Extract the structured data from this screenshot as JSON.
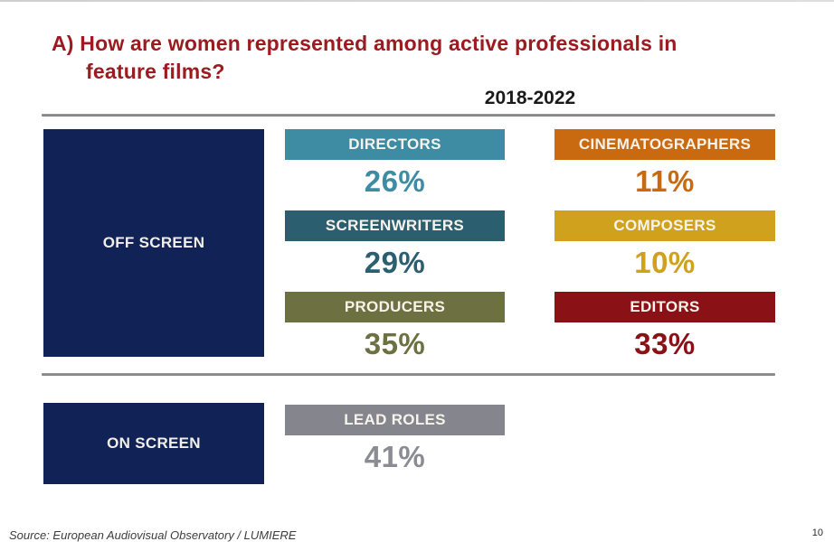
{
  "page": {
    "title_line1": "A) How are women represented among active professionals in",
    "title_line2": "feature films?",
    "title_color": "#9c1b20",
    "period": "2018-2022",
    "source": "Source: European Audiovisual Observatory / LUMIERE",
    "page_number": "10"
  },
  "off_screen": {
    "label": "OFF SCREEN",
    "box_color": "#112356",
    "items": [
      {
        "label": "DIRECTORS",
        "value": "26%",
        "color": "#3e8ba4"
      },
      {
        "label": "CINEMATOGRAPHERS",
        "value": "11%",
        "color": "#c96a10"
      },
      {
        "label": "SCREENWRITERS",
        "value": "29%",
        "color": "#2b5e6e"
      },
      {
        "label": "COMPOSERS",
        "value": "10%",
        "color": "#cfa11d"
      },
      {
        "label": "PRODUCERS",
        "value": "35%",
        "color": "#6d7040"
      },
      {
        "label": "EDITORS",
        "value": "33%",
        "color": "#8a1115"
      }
    ]
  },
  "on_screen": {
    "label": "ON SCREEN",
    "box_color": "#112356",
    "items": [
      {
        "label": "LEAD ROLES",
        "value": "41%",
        "color": "#85868d",
        "value_color": "#8b8c93"
      }
    ]
  },
  "chart_data": {
    "type": "table",
    "title": "A) How are women represented among active professionals in feature films?",
    "subtitle": "2018-2022",
    "unit": "%",
    "groups": [
      {
        "name": "OFF SCREEN",
        "categories": [
          "DIRECTORS",
          "CINEMATOGRAPHERS",
          "SCREENWRITERS",
          "COMPOSERS",
          "PRODUCERS",
          "EDITORS"
        ],
        "values": [
          26,
          11,
          29,
          10,
          35,
          33
        ]
      },
      {
        "name": "ON SCREEN",
        "categories": [
          "LEAD ROLES"
        ],
        "values": [
          41
        ]
      }
    ],
    "source": "Source: European Audiovisual Observatory / LUMIERE"
  }
}
